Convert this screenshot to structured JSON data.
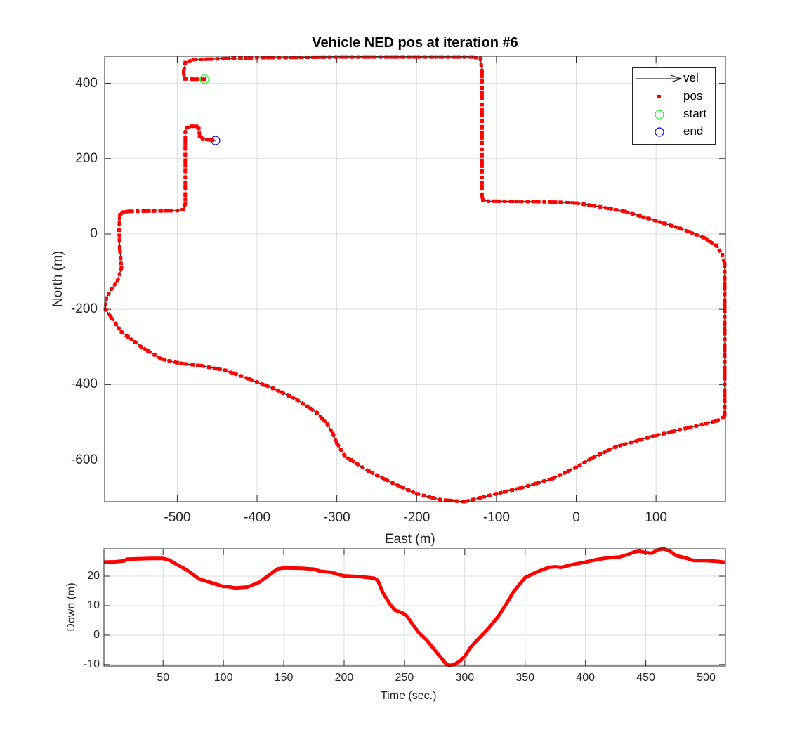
{
  "chart_data": [
    {
      "type": "scatter",
      "title": "Vehicle NED pos at iteration #6",
      "xlabel": "East (m)",
      "ylabel": "North (m)",
      "xlim": [
        -591,
        187
      ],
      "ylim": [
        -711,
        472
      ],
      "xticks": [
        -500,
        -400,
        -300,
        -200,
        -100,
        0,
        100
      ],
      "yticks": [
        -600,
        -400,
        -200,
        0,
        200,
        400
      ],
      "grid": true,
      "legend": {
        "position": "northeast",
        "entries": [
          {
            "label": "vel",
            "marker": "arrow",
            "color": "#000000"
          },
          {
            "label": "pos",
            "marker": "square",
            "color": "#ff0000"
          },
          {
            "label": "start",
            "marker": "circle",
            "color": "#00ff00"
          },
          {
            "label": "end",
            "marker": "circle",
            "color": "#0000ff"
          }
        ]
      },
      "series": [
        {
          "name": "pos",
          "color": "#ff0000",
          "east": [
            -466,
            -480,
            -491,
            -492,
            -490,
            -480,
            -450,
            -400,
            -300,
            -200,
            -130,
            -120,
            -118,
            -118,
            -118,
            -118,
            -117,
            -110,
            -100,
            -50,
            -20,
            0,
            30,
            60,
            100,
            130,
            160,
            175,
            183,
            186,
            186,
            186,
            186,
            184,
            175,
            150,
            100,
            50,
            20,
            0,
            -30,
            -70,
            -100,
            -140,
            -170,
            -200,
            -230,
            -260,
            -290,
            -300,
            -305,
            -312,
            -325,
            -350,
            -380,
            -410,
            -440,
            -470,
            -490,
            -500,
            -520,
            -545,
            -570,
            -590,
            -589,
            -582,
            -575,
            -570,
            -572,
            -573,
            -572,
            -568,
            -560,
            -530,
            -500,
            -492,
            -490,
            -490,
            -490,
            -490,
            -488,
            -482,
            -476,
            -473,
            -472,
            -468,
            -460,
            -452
          ],
          "north": [
            411,
            411,
            412,
            430,
            455,
            463,
            465,
            468,
            470,
            470,
            470,
            466,
            430,
            300,
            150,
            100,
            90,
            87,
            87,
            86,
            84,
            82,
            72,
            60,
            35,
            15,
            -10,
            -30,
            -55,
            -80,
            -200,
            -400,
            -480,
            -488,
            -497,
            -510,
            -535,
            -565,
            -595,
            -620,
            -650,
            -675,
            -690,
            -711,
            -706,
            -690,
            -662,
            -630,
            -590,
            -555,
            -530,
            -505,
            -475,
            -440,
            -410,
            -385,
            -362,
            -350,
            -345,
            -342,
            -332,
            -300,
            -260,
            -200,
            -170,
            -145,
            -125,
            -90,
            -40,
            10,
            50,
            58,
            60,
            61,
            62,
            65,
            80,
            150,
            230,
            270,
            282,
            286,
            286,
            280,
            260,
            253,
            250,
            248
          ]
        },
        {
          "name": "start",
          "color": "#00ff00",
          "east": [
            -466
          ],
          "north": [
            411
          ]
        },
        {
          "name": "end",
          "color": "#0000ff",
          "east": [
            -452
          ],
          "north": [
            248
          ]
        }
      ]
    },
    {
      "type": "line",
      "xlabel": "Time (sec.)",
      "ylabel": "Down (m)",
      "xlim": [
        1,
        516
      ],
      "ylim": [
        -10.5,
        29.3
      ],
      "xticks": [
        50,
        100,
        150,
        200,
        250,
        300,
        350,
        400,
        450,
        500
      ],
      "yticks": [
        -10,
        0,
        10,
        20
      ],
      "grid": true,
      "series": [
        {
          "name": "Down",
          "color": "#ff0000",
          "x": [
            1,
            10,
            18,
            20,
            30,
            40,
            50,
            55,
            60,
            70,
            80,
            90,
            100,
            103,
            110,
            120,
            130,
            140,
            145,
            150,
            165,
            175,
            180,
            190,
            195,
            200,
            215,
            225,
            228,
            232,
            238,
            242,
            248,
            252,
            258,
            262,
            268,
            275,
            280,
            285,
            288,
            292,
            296,
            300,
            305,
            312,
            320,
            328,
            335,
            340,
            345,
            350,
            360,
            370,
            375,
            380,
            390,
            400,
            410,
            420,
            428,
            435,
            440,
            445,
            450,
            455,
            460,
            465,
            470,
            475,
            480,
            490,
            500,
            510,
            516
          ],
          "y": [
            24.8,
            24.9,
            25.2,
            25.8,
            25.9,
            26.0,
            26.0,
            25.5,
            24.3,
            22.0,
            19.0,
            17.8,
            16.5,
            16.5,
            16.0,
            16.3,
            18.0,
            21.0,
            22.5,
            22.8,
            22.7,
            22.4,
            21.7,
            21.3,
            20.6,
            20.1,
            19.8,
            19.3,
            18.5,
            14.5,
            10.5,
            8.5,
            7.6,
            6.5,
            3.0,
            0.8,
            -1.5,
            -5.0,
            -7.5,
            -10.0,
            -10.3,
            -9.8,
            -8.8,
            -7.2,
            -4.0,
            -1.0,
            2.5,
            6.5,
            11.0,
            14.5,
            17.0,
            19.5,
            21.5,
            23.0,
            23.2,
            23.0,
            24.0,
            24.8,
            25.7,
            26.3,
            26.5,
            27.3,
            28.2,
            28.5,
            28.0,
            27.8,
            29.0,
            29.3,
            28.5,
            27.0,
            26.5,
            25.3,
            25.3,
            25.0,
            24.7
          ]
        }
      ]
    }
  ],
  "figure": {
    "title": "Vehicle NED pos at iteration #6",
    "top": {
      "xlabel": "East (m)",
      "ylabel": "North (m)",
      "xtick_labels": [
        "-500",
        "-400",
        "-300",
        "-200",
        "-100",
        "0",
        "100"
      ],
      "ytick_labels": [
        "400",
        "200",
        "0",
        "-200",
        "-400",
        "-600"
      ]
    },
    "bottom": {
      "xlabel": "Time (sec.)",
      "ylabel": "Down (m)",
      "xtick_labels": [
        "50",
        "100",
        "150",
        "200",
        "250",
        "300",
        "350",
        "400",
        "450",
        "500"
      ],
      "ytick_labels": [
        "20",
        "10",
        "0",
        "-10"
      ]
    },
    "legend": {
      "vel": "vel",
      "pos": "pos",
      "start": "start",
      "end": "end"
    }
  }
}
